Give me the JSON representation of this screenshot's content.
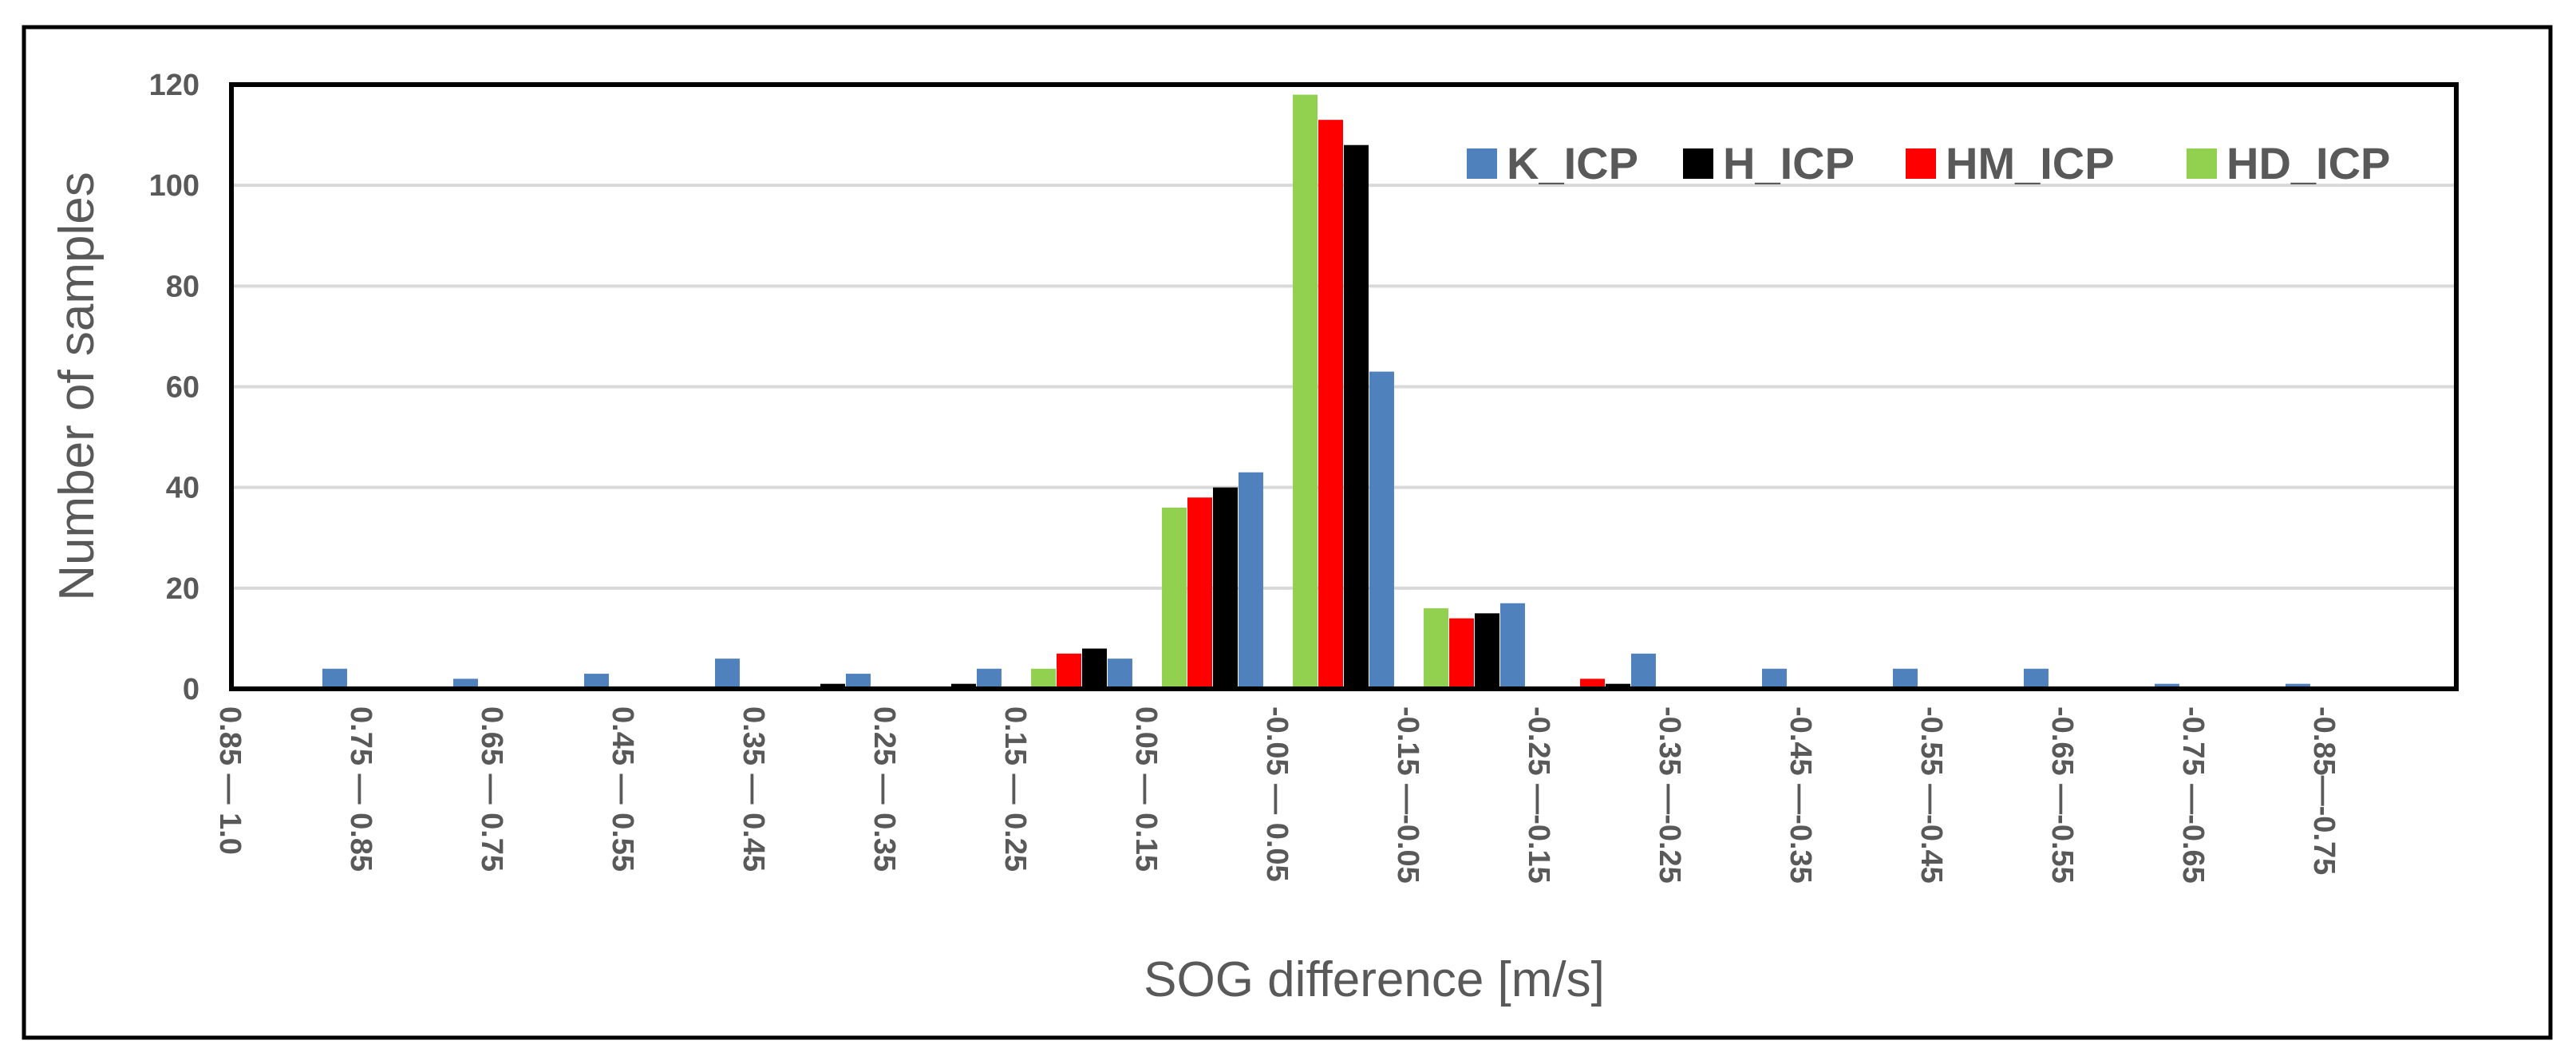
{
  "chart_data": {
    "type": "bar",
    "title": "",
    "xlabel": "SOG difference [m/s]",
    "ylabel": "Number of samples",
    "ylim": [
      0,
      120
    ],
    "yticks": [
      0,
      20,
      40,
      60,
      80,
      100,
      120
    ],
    "grid": true,
    "legend_position": "top-right",
    "categories": [
      "0.85 — 1.0",
      "0.75 — 0.85",
      "0.65 — 0.75",
      "0.45 — 0.55",
      "0.35 — 0.45",
      "0.25 — 0.35",
      "0.15 — 0.25",
      "0.05 — 0.15",
      "-0.05 — 0.05",
      "-0.15 —-0.05",
      "-0.25 —-0.15",
      "-0.35 —-0.25",
      "-0.45 —-0.35",
      "-0.55 —-0.45",
      "-0.65 —-0.55",
      "-0.75 —-0.65",
      "-0.85—-0.75"
    ],
    "series": [
      {
        "name": "HD_ICP",
        "color": "#92D050",
        "values": [
          0,
          0,
          0,
          0,
          0,
          0,
          4,
          36,
          118,
          16,
          0,
          0,
          0,
          0,
          0,
          0,
          0
        ]
      },
      {
        "name": "HM_ICP",
        "color": "#FF0000",
        "values": [
          0,
          0,
          0,
          0,
          0,
          0,
          7,
          38,
          113,
          14,
          2,
          0,
          0,
          0,
          0,
          0,
          0
        ]
      },
      {
        "name": "H_ICP",
        "color": "#000000",
        "values": [
          0,
          0,
          0,
          0,
          1,
          1,
          8,
          40,
          108,
          15,
          1,
          0,
          0,
          0,
          0,
          0,
          0
        ]
      },
      {
        "name": "K_ICP",
        "color": "#4F81BD",
        "values": [
          4,
          2,
          3,
          6,
          3,
          4,
          6,
          43,
          63,
          17,
          7,
          4,
          4,
          4,
          1,
          1,
          0
        ]
      }
    ],
    "legend_order": [
      "K_ICP",
      "H_ICP",
      "HM_ICP",
      "HD_ICP"
    ]
  }
}
